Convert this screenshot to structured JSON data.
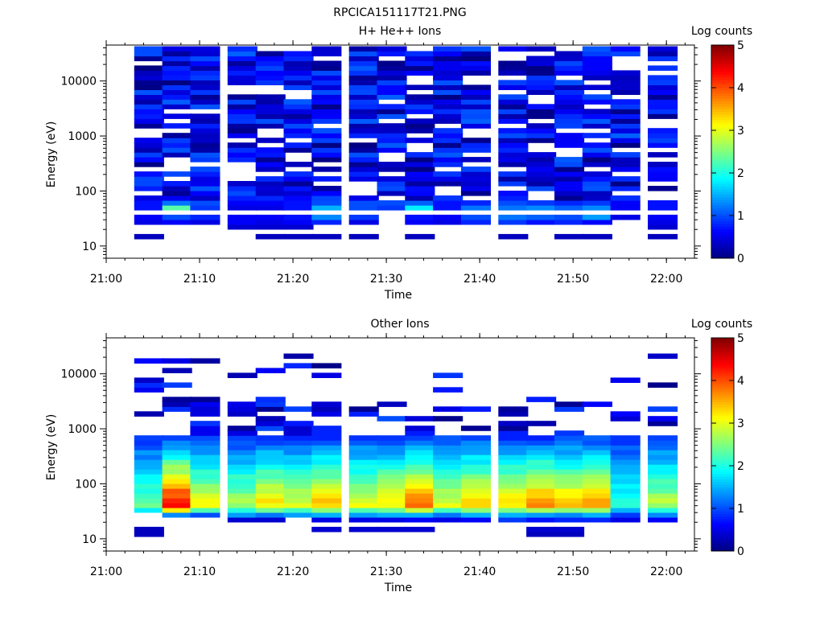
{
  "figure": {
    "title": "RPCICA151117T21.PNG"
  },
  "chart_data": [
    {
      "type": "heatmap",
      "title": "H+ He++ Ions",
      "xlabel": "Time",
      "ylabel": "Energy (eV)",
      "yscale": "log",
      "ylim": [
        6,
        45000
      ],
      "xlim": [
        "21:00",
        "22:03"
      ],
      "x_ticks": [
        "21:00",
        "21:10",
        "21:20",
        "21:30",
        "21:40",
        "21:50",
        "22:00"
      ],
      "y_ticks": [
        "10",
        "100",
        "1000",
        "10000"
      ],
      "colorbar": {
        "label": "Log counts",
        "min": 0,
        "max": 5,
        "ticks": [
          "0",
          "1",
          "2",
          "3",
          "4",
          "5"
        ]
      },
      "time_bins_start": [
        "21:03",
        "21:06",
        "21:09",
        "21:13",
        "21:16",
        "21:19",
        "21:22",
        "21:26",
        "21:29",
        "21:32",
        "21:35",
        "21:38",
        "21:42",
        "21:45",
        "21:48",
        "21:51",
        "21:54",
        "21:58"
      ],
      "low_energy_rows": [
        {
          "energy": 16,
          "values": [
            0.3,
            null,
            null,
            null,
            0.3,
            0.3,
            0.3,
            0.3,
            null,
            0.3,
            null,
            null,
            0.3,
            null,
            0.3,
            0.3,
            null,
            0.3
          ]
        },
        {
          "energy": 22,
          "values": [
            null,
            null,
            null,
            0.4,
            0.4,
            0.4,
            null,
            null,
            null,
            null,
            null,
            null,
            null,
            null,
            null,
            null,
            null,
            0.4
          ]
        },
        {
          "energy": 28,
          "values": [
            0.5,
            0.6,
            0.5,
            0.6,
            0.5,
            0.6,
            0.8,
            0.5,
            null,
            0.6,
            0.5,
            0.8,
            0.9,
            0.7,
            0.8,
            0.6,
            null,
            0.5
          ]
        },
        {
          "energy": 36,
          "values": [
            0.6,
            1.0,
            0.8,
            0.6,
            0.6,
            0.7,
            1.3,
            0.9,
            null,
            0.7,
            0.6,
            1.0,
            1.2,
            1.1,
            1.0,
            1.4,
            0.5,
            0.6
          ]
        },
        {
          "energy": 48,
          "values": [
            0.7,
            2.3,
            0.9,
            0.5,
            0.5,
            0.7,
            1.5,
            1.0,
            0.9,
            1.8,
            0.7,
            1.2,
            1.2,
            1.3,
            1.1,
            1.3,
            0.6,
            0.7
          ]
        },
        {
          "energy": 62,
          "values": [
            0.7,
            1.2,
            1.0,
            0.6,
            0.6,
            0.7,
            1.0,
            1.0,
            1.0,
            1.1,
            0.7,
            0.8,
            1.0,
            0.9,
            0.8,
            0.9,
            0.6,
            0.7
          ]
        }
      ],
      "higher_energy": "sparse counts, log counts 0-1.2 across 80-40000 eV"
    },
    {
      "type": "heatmap",
      "title": "Other Ions",
      "xlabel": "Time",
      "ylabel": "Energy (eV)",
      "yscale": "log",
      "ylim": [
        6,
        45000
      ],
      "xlim": [
        "21:00",
        "22:03"
      ],
      "x_ticks": [
        "21:00",
        "21:10",
        "21:20",
        "21:30",
        "21:40",
        "21:50",
        "22:00"
      ],
      "y_ticks": [
        "10",
        "100",
        "1000",
        "10000"
      ],
      "colorbar": {
        "label": "Log counts",
        "min": 0,
        "max": 5,
        "ticks": [
          "0",
          "1",
          "2",
          "3",
          "4",
          "5"
        ]
      },
      "time_bins_start": [
        "21:03",
        "21:06",
        "21:09",
        "21:13",
        "21:16",
        "21:19",
        "21:22",
        "21:26",
        "21:29",
        "21:32",
        "21:35",
        "21:38",
        "21:42",
        "21:45",
        "21:48",
        "21:51",
        "21:54",
        "21:58"
      ],
      "peak_log_counts": [
        2.4,
        4.3,
        3.0,
        2.7,
        3.2,
        2.9,
        3.4,
        3.0,
        3.2,
        3.8,
        2.9,
        3.4,
        3.3,
        3.6,
        3.4,
        3.5,
        2.0,
        2.7
      ],
      "peak_energy": 50,
      "low_energy_rows": [
        {
          "energy": 12,
          "values": [
            0.3,
            null,
            null,
            null,
            null,
            null,
            null,
            null,
            null,
            null,
            null,
            null,
            null,
            0.3,
            0.3,
            null,
            null,
            null
          ]
        },
        {
          "energy": 16,
          "values": [
            0.3,
            null,
            null,
            null,
            null,
            null,
            0.4,
            0.4,
            0.4,
            0.4,
            null,
            null,
            null,
            0.4,
            0.4,
            null,
            null,
            null
          ]
        },
        {
          "energy": 22,
          "values": [
            null,
            null,
            null,
            0.4,
            0.4,
            null,
            0.5,
            0.5,
            0.5,
            0.6,
            0.5,
            0.6,
            0.9,
            0.7,
            0.8,
            0.8,
            0.5,
            0.6
          ]
        },
        {
          "energy": 28,
          "values": [
            null,
            1.3,
            1.0,
            1.4,
            1.2,
            1.4,
            1.5,
            1.4,
            1.5,
            1.5,
            1.2,
            1.5,
            1.5,
            1.4,
            1.3,
            1.5,
            0.9,
            1.3
          ]
        }
      ],
      "higher_energy": "sparse counts, log counts 0-1.2 above 800 eV"
    }
  ]
}
